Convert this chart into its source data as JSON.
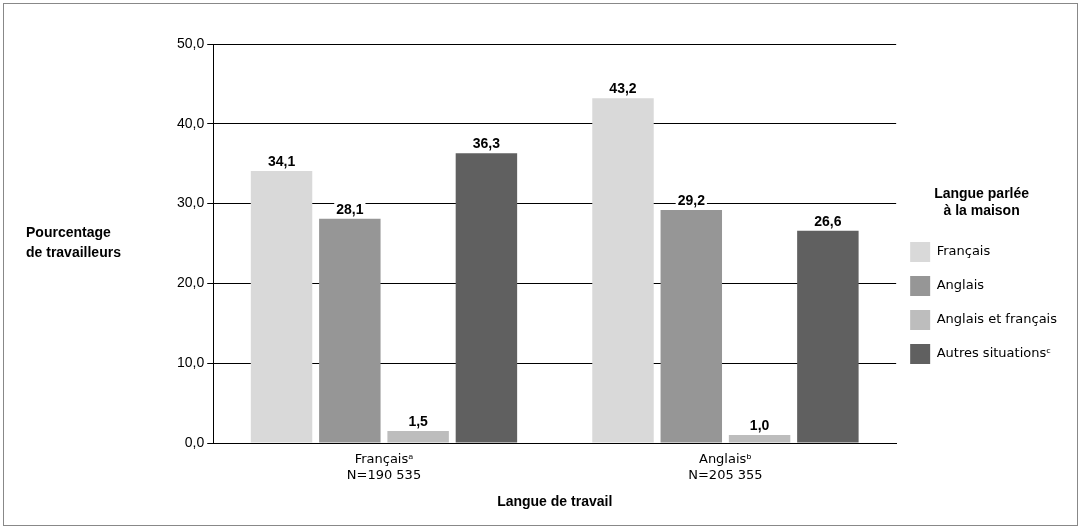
{
  "chart_data": {
    "type": "bar",
    "xlabel": "Langue de travail",
    "ylabel": "Pourcentage de travailleurs",
    "legend_title": "Langue parlée à la maison",
    "categories": [
      "Françaisᵃ\nN=190 535",
      "Anglaisᵇ\nN=205 355"
    ],
    "series": [
      {
        "name": "Français",
        "color": "#d9d9d9",
        "values": [
          34.1,
          43.2
        ],
        "value_labels": [
          "34,1",
          "43,2"
        ]
      },
      {
        "name": "Anglais",
        "color": "#969696",
        "values": [
          28.1,
          29.2
        ],
        "value_labels": [
          "28,1",
          "29,2"
        ]
      },
      {
        "name": "Anglais et français",
        "color": "#bdbdbd",
        "values": [
          1.5,
          1.0
        ],
        "value_labels": [
          "1,5",
          "1,0"
        ]
      },
      {
        "name": "Autres situationsᶜ",
        "color": "#606060",
        "values": [
          36.3,
          26.6
        ],
        "value_labels": [
          "36,3",
          "26,6"
        ]
      }
    ],
    "ylim": [
      0,
      50
    ],
    "yticks": [
      {
        "value": 0,
        "label": "0,0"
      },
      {
        "value": 10,
        "label": "10,0"
      },
      {
        "value": 20,
        "label": "20,0"
      },
      {
        "value": 30,
        "label": "30,0"
      },
      {
        "value": 40,
        "label": "40,0"
      },
      {
        "value": 50,
        "label": "50,0"
      }
    ],
    "grid": "y",
    "legend": "right"
  }
}
